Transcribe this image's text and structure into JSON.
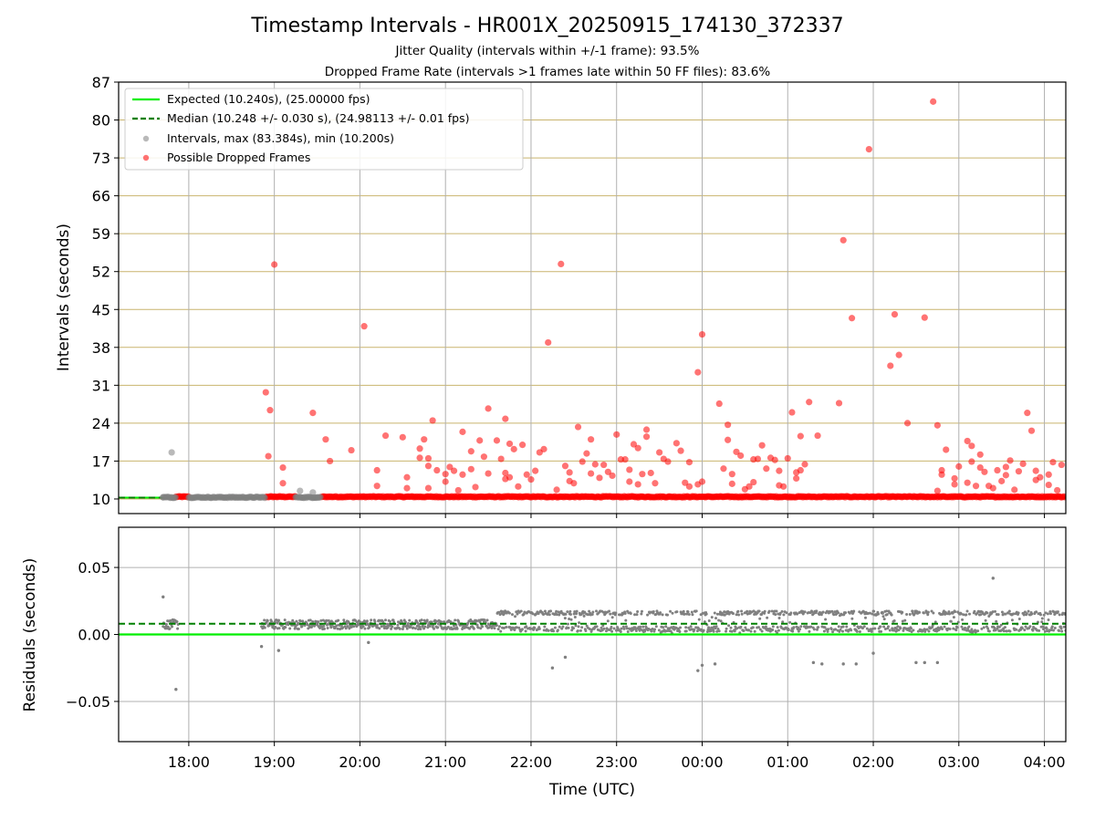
{
  "chart_data": [
    {
      "type": "scatter",
      "title": "Timestamp Intervals - HR001X_20250915_174130_372337",
      "subtitle_lines": [
        "Jitter Quality (intervals within +/-1 frame): 93.5%",
        "Dropped Frame Rate (intervals >1 frames late within 50 FF files): 83.6%"
      ],
      "ylabel": "Intervals (seconds)",
      "ylim": [
        7.3,
        87
      ],
      "yticks": [
        10,
        17,
        24,
        31,
        38,
        45,
        52,
        59,
        66,
        73,
        80,
        87
      ],
      "xlim_hours": [
        17.18,
        28.25
      ],
      "grid": true,
      "legend_position": "upper-left",
      "legend": [
        {
          "label": "Expected (10.240s), (25.00000 fps)",
          "kind": "line",
          "color": "#00ee00"
        },
        {
          "label": "Median (10.248 +/- 0.030 s), (24.98113 +/- 0.01 fps)",
          "kind": "dashed-line",
          "color": "#008000"
        },
        {
          "label": "Intervals, max (83.384s), min (10.200s)",
          "kind": "point",
          "color": "#808080"
        },
        {
          "label": "Possible Dropped Frames",
          "kind": "point",
          "color": "#ff0000"
        }
      ],
      "expected_value": 10.24,
      "median_value": 10.248,
      "series": [
        {
          "name": "Possible Dropped Frames",
          "color": "#ff0000",
          "baseline_segments": [
            [
              17.85,
              18.0
            ],
            [
              18.9,
              19.25
            ],
            [
              19.55,
              21.65
            ],
            [
              21.65,
              28.25
            ]
          ],
          "baseline_value": 10.4,
          "points": [
            [
              18.9,
              29.7
            ],
            [
              18.93,
              17.9
            ],
            [
              18.95,
              26.4
            ],
            [
              19.0,
              53.3
            ],
            [
              19.1,
              15.8
            ],
            [
              19.1,
              12.9
            ],
            [
              19.45,
              25.9
            ],
            [
              19.6,
              21.0
            ],
            [
              19.65,
              17.0
            ],
            [
              19.9,
              19.0
            ],
            [
              20.05,
              41.9
            ],
            [
              20.2,
              15.3
            ],
            [
              20.2,
              12.4
            ],
            [
              20.3,
              21.7
            ],
            [
              20.5,
              21.4
            ],
            [
              20.55,
              14.0
            ],
            [
              20.55,
              12.0
            ],
            [
              20.7,
              19.3
            ],
            [
              20.7,
              17.6
            ],
            [
              20.75,
              21.0
            ],
            [
              20.8,
              16.1
            ],
            [
              20.8,
              17.5
            ],
            [
              20.8,
              12.0
            ],
            [
              20.85,
              24.5
            ],
            [
              20.9,
              15.3
            ],
            [
              21.0,
              14.6
            ],
            [
              21.0,
              13.2
            ],
            [
              21.05,
              15.9
            ],
            [
              21.1,
              15.2
            ],
            [
              21.15,
              11.6
            ],
            [
              21.2,
              14.5
            ],
            [
              21.2,
              22.4
            ],
            [
              21.3,
              18.8
            ],
            [
              21.3,
              15.5
            ],
            [
              21.35,
              12.2
            ],
            [
              21.4,
              20.8
            ],
            [
              21.45,
              17.8
            ],
            [
              21.5,
              14.7
            ],
            [
              21.5,
              26.7
            ],
            [
              21.6,
              20.8
            ],
            [
              21.65,
              17.4
            ],
            [
              21.7,
              24.8
            ],
            [
              21.7,
              14.8
            ],
            [
              21.7,
              13.7
            ],
            [
              21.75,
              14.0
            ],
            [
              21.75,
              20.2
            ],
            [
              21.8,
              19.2
            ],
            [
              21.85,
              12.3
            ],
            [
              21.9,
              20.0
            ],
            [
              21.95,
              14.5
            ],
            [
              22.0,
              13.6
            ],
            [
              22.05,
              15.2
            ],
            [
              22.1,
              18.6
            ],
            [
              22.15,
              19.2
            ],
            [
              22.2,
              38.9
            ],
            [
              22.3,
              11.7
            ],
            [
              22.35,
              53.4
            ],
            [
              22.4,
              16.1
            ],
            [
              22.45,
              14.9
            ],
            [
              22.45,
              13.3
            ],
            [
              22.5,
              12.9
            ],
            [
              22.55,
              23.3
            ],
            [
              22.6,
              16.9
            ],
            [
              22.65,
              18.4
            ],
            [
              22.7,
              21.0
            ],
            [
              22.7,
              14.7
            ],
            [
              22.75,
              16.4
            ],
            [
              22.8,
              13.9
            ],
            [
              22.85,
              16.3
            ],
            [
              22.9,
              15.0
            ],
            [
              22.95,
              14.3
            ],
            [
              23.0,
              21.9
            ],
            [
              23.05,
              17.3
            ],
            [
              23.1,
              17.3
            ],
            [
              23.15,
              15.4
            ],
            [
              23.15,
              13.2
            ],
            [
              23.2,
              20.1
            ],
            [
              23.25,
              19.4
            ],
            [
              23.25,
              12.7
            ],
            [
              23.3,
              14.6
            ],
            [
              23.35,
              22.8
            ],
            [
              23.35,
              21.5
            ],
            [
              23.4,
              14.8
            ],
            [
              23.45,
              12.9
            ],
            [
              23.5,
              18.6
            ],
            [
              23.55,
              17.4
            ],
            [
              23.6,
              16.9
            ],
            [
              23.7,
              20.3
            ],
            [
              23.75,
              18.9
            ],
            [
              23.8,
              13.0
            ],
            [
              23.85,
              12.3
            ],
            [
              23.85,
              16.8
            ],
            [
              23.95,
              12.7
            ],
            [
              23.95,
              33.4
            ],
            [
              24.0,
              40.4
            ],
            [
              24.0,
              13.2
            ],
            [
              24.2,
              27.6
            ],
            [
              24.25,
              15.6
            ],
            [
              24.3,
              23.7
            ],
            [
              24.3,
              20.9
            ],
            [
              24.35,
              14.6
            ],
            [
              24.35,
              12.8
            ],
            [
              24.4,
              18.7
            ],
            [
              24.45,
              18.0
            ],
            [
              24.5,
              11.8
            ],
            [
              24.55,
              12.3
            ],
            [
              24.6,
              13.1
            ],
            [
              24.6,
              17.3
            ],
            [
              24.65,
              17.4
            ],
            [
              24.7,
              19.9
            ],
            [
              24.75,
              15.6
            ],
            [
              24.8,
              17.6
            ],
            [
              24.85,
              17.2
            ],
            [
              24.9,
              12.5
            ],
            [
              24.9,
              15.2
            ],
            [
              24.95,
              12.3
            ],
            [
              25.0,
              17.5
            ],
            [
              25.05,
              26.0
            ],
            [
              25.1,
              14.9
            ],
            [
              25.1,
              13.8
            ],
            [
              25.15,
              15.3
            ],
            [
              25.15,
              21.6
            ],
            [
              25.2,
              16.4
            ],
            [
              25.25,
              27.9
            ],
            [
              25.35,
              21.7
            ],
            [
              25.6,
              27.7
            ],
            [
              25.65,
              57.8
            ],
            [
              25.75,
              43.4
            ],
            [
              25.95,
              74.6
            ],
            [
              26.2,
              34.6
            ],
            [
              26.25,
              44.1
            ],
            [
              26.3,
              36.6
            ],
            [
              26.4,
              24.0
            ],
            [
              26.6,
              43.5
            ],
            [
              26.7,
              83.4
            ],
            [
              26.75,
              23.6
            ],
            [
              26.75,
              11.5
            ],
            [
              26.8,
              15.3
            ],
            [
              26.8,
              14.5
            ],
            [
              26.85,
              19.1
            ],
            [
              26.95,
              13.8
            ],
            [
              26.95,
              12.7
            ],
            [
              27.0,
              16.0
            ],
            [
              27.1,
              20.7
            ],
            [
              27.1,
              13.0
            ],
            [
              27.15,
              19.8
            ],
            [
              27.15,
              16.9
            ],
            [
              27.2,
              12.4
            ],
            [
              27.25,
              18.2
            ],
            [
              27.25,
              15.8
            ],
            [
              27.3,
              15.0
            ],
            [
              27.35,
              12.4
            ],
            [
              27.4,
              12.0
            ],
            [
              27.45,
              15.3
            ],
            [
              27.5,
              13.3
            ],
            [
              27.55,
              14.4
            ],
            [
              27.55,
              15.9
            ],
            [
              27.6,
              17.1
            ],
            [
              27.65,
              11.7
            ],
            [
              27.7,
              15.1
            ],
            [
              27.75,
              16.5
            ],
            [
              27.8,
              25.9
            ],
            [
              27.85,
              22.6
            ],
            [
              27.9,
              13.5
            ],
            [
              27.9,
              15.2
            ],
            [
              27.95,
              14.0
            ],
            [
              28.05,
              14.5
            ],
            [
              28.05,
              12.6
            ],
            [
              28.1,
              16.8
            ],
            [
              28.15,
              11.6
            ],
            [
              28.2,
              16.3
            ]
          ]
        },
        {
          "name": "Intervals, max (83.384s), min (10.200s)",
          "color": "#808080",
          "baseline_segments": [
            [
              17.7,
              17.85
            ],
            [
              18.0,
              18.9
            ],
            [
              19.25,
              19.55
            ]
          ],
          "baseline_value": 10.3,
          "points": [
            [
              17.7,
              10.3
            ],
            [
              17.8,
              18.6
            ],
            [
              19.3,
              11.5
            ],
            [
              19.45,
              11.2
            ]
          ]
        }
      ]
    },
    {
      "type": "scatter",
      "xlabel": "Time (UTC)",
      "ylabel": "Residuals (seconds)",
      "ylim": [
        -0.08,
        0.08
      ],
      "yticks": [
        0.05,
        0.0,
        -0.05
      ],
      "ytick_labels": [
        "0.05",
        "0.00",
        "−0.05"
      ],
      "xlim_hours": [
        17.18,
        28.25
      ],
      "xticks": [
        "18:00",
        "19:00",
        "20:00",
        "21:00",
        "22:00",
        "23:00",
        "00:00",
        "01:00",
        "02:00",
        "03:00",
        "04:00"
      ],
      "xtick_hours": [
        18,
        19,
        20,
        21,
        22,
        23,
        24,
        25,
        26,
        27,
        28
      ],
      "grid": true,
      "expected_value": 0.0,
      "median_value": 0.008,
      "series": [
        {
          "name": "Residuals",
          "color": "#808080",
          "outliers": [
            [
              17.7,
              0.028
            ],
            [
              17.85,
              -0.041
            ],
            [
              18.85,
              -0.009
            ],
            [
              19.05,
              -0.012
            ],
            [
              20.1,
              -0.006
            ],
            [
              22.25,
              -0.025
            ],
            [
              22.4,
              -0.017
            ],
            [
              23.95,
              -0.027
            ],
            [
              24.0,
              -0.023
            ],
            [
              24.15,
              -0.022
            ],
            [
              25.3,
              -0.021
            ],
            [
              25.4,
              -0.022
            ],
            [
              25.65,
              -0.022
            ],
            [
              25.8,
              -0.022
            ],
            [
              26.0,
              -0.014
            ],
            [
              26.5,
              -0.021
            ],
            [
              26.6,
              -0.021
            ],
            [
              26.75,
              -0.021
            ],
            [
              27.4,
              0.042
            ]
          ]
        }
      ]
    }
  ]
}
